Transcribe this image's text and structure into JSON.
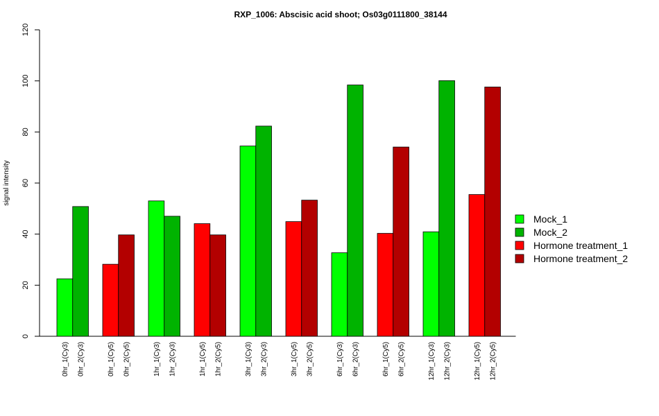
{
  "chart_data": {
    "type": "bar",
    "title": "RXP_1006: Abscisic acid shoot; Os03g0111800_38144",
    "xlabel": "",
    "ylabel": "signal intensity",
    "ylim": [
      0,
      120
    ],
    "yticks": [
      0,
      20,
      40,
      60,
      80,
      100,
      120
    ],
    "grid": false,
    "legend_position": "right",
    "legend": [
      {
        "name": "Mock_1",
        "color": "#00ff00"
      },
      {
        "name": "Mock_2",
        "color": "#00b300"
      },
      {
        "name": "Hormone treatment_1",
        "color": "#ff0000"
      },
      {
        "name": "Hormone treatment_2",
        "color": "#b30000"
      }
    ],
    "groups": [
      {
        "bars": [
          {
            "label": "0hr_1(Cy3)",
            "value": 22.5,
            "color": "#00ff00"
          },
          {
            "label": "0hr_2(Cy3)",
            "value": 50.8,
            "color": "#00b300"
          }
        ]
      },
      {
        "bars": [
          {
            "label": "0hr_1(Cy5)",
            "value": 28.2,
            "color": "#ff0000"
          },
          {
            "label": "0hr_2(Cy5)",
            "value": 39.7,
            "color": "#b30000"
          }
        ]
      },
      {
        "bars": [
          {
            "label": "1hr_1(Cy3)",
            "value": 53.0,
            "color": "#00ff00"
          },
          {
            "label": "1hr_2(Cy3)",
            "value": 47.0,
            "color": "#00b300"
          }
        ]
      },
      {
        "bars": [
          {
            "label": "1hr_1(Cy5)",
            "value": 44.1,
            "color": "#ff0000"
          },
          {
            "label": "1hr_2(Cy5)",
            "value": 39.7,
            "color": "#b30000"
          }
        ]
      },
      {
        "bars": [
          {
            "label": "3hr_1(Cy3)",
            "value": 74.5,
            "color": "#00ff00"
          },
          {
            "label": "3hr_2(Cy3)",
            "value": 82.3,
            "color": "#00b300"
          }
        ]
      },
      {
        "bars": [
          {
            "label": "3hr_1(Cy5)",
            "value": 44.9,
            "color": "#ff0000"
          },
          {
            "label": "3hr_2(Cy5)",
            "value": 53.3,
            "color": "#b30000"
          }
        ]
      },
      {
        "bars": [
          {
            "label": "6hr_1(Cy3)",
            "value": 32.7,
            "color": "#00ff00"
          },
          {
            "label": "6hr_2(Cy3)",
            "value": 98.4,
            "color": "#00b300"
          }
        ]
      },
      {
        "bars": [
          {
            "label": "6hr_1(Cy5)",
            "value": 40.3,
            "color": "#ff0000"
          },
          {
            "label": "6hr_2(Cy5)",
            "value": 74.1,
            "color": "#b30000"
          }
        ]
      },
      {
        "bars": [
          {
            "label": "12hr_1(Cy3)",
            "value": 40.9,
            "color": "#00ff00"
          },
          {
            "label": "12hr_2(Cy3)",
            "value": 100.1,
            "color": "#00b300"
          }
        ]
      },
      {
        "bars": [
          {
            "label": "12hr_1(Cy5)",
            "value": 55.5,
            "color": "#ff0000"
          },
          {
            "label": "12hr_2(Cy5)",
            "value": 97.6,
            "color": "#b30000"
          }
        ]
      }
    ]
  }
}
